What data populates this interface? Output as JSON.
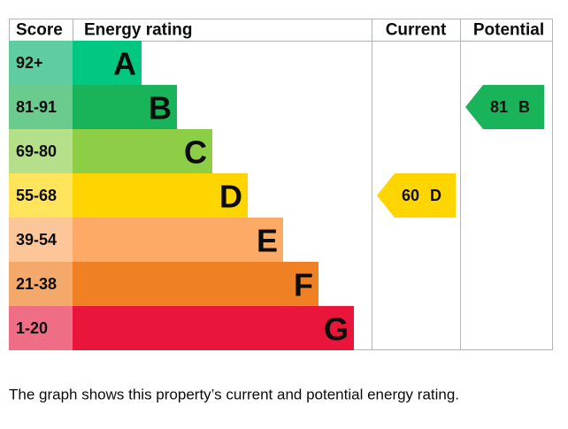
{
  "headers": [
    "Score",
    "Energy rating",
    "Current",
    "Potential"
  ],
  "bands": [
    {
      "score": "92+",
      "letter": "A",
      "color": "#00c781",
      "score_color": "#5fcca1"
    },
    {
      "score": "81-91",
      "letter": "B",
      "color": "#19b459",
      "score_color": "#6bcb8f"
    },
    {
      "score": "69-80",
      "letter": "C",
      "color": "#8dce46",
      "score_color": "#b6df89"
    },
    {
      "score": "55-68",
      "letter": "D",
      "color": "#ffd500",
      "score_color": "#ffe45c"
    },
    {
      "score": "39-54",
      "letter": "E",
      "color": "#fcaa65",
      "score_color": "#fdc699"
    },
    {
      "score": "21-38",
      "letter": "F",
      "color": "#ef8023",
      "score_color": "#f4a86a"
    },
    {
      "score": "1-20",
      "letter": "G",
      "color": "#e9153b",
      "score_color": "#f06d86"
    }
  ],
  "current": {
    "score": "60",
    "letter": "D"
  },
  "potential": {
    "score": "81",
    "letter": "B"
  },
  "caption": "The graph shows this property’s current and potential energy rating."
}
